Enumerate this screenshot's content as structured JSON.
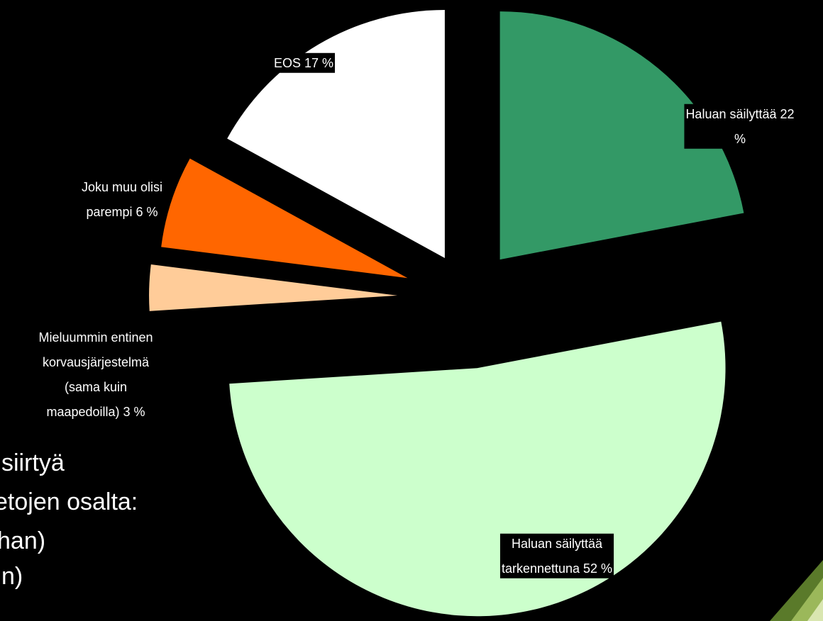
{
  "chart_data": {
    "type": "pie",
    "values": [
      22,
      52,
      3,
      6,
      17
    ],
    "value_labels": [
      [
        "Haluan säilyttää 22",
        "%"
      ],
      [
        "Haluan säilyttää",
        "tarkennettuna 52 %"
      ],
      [
        "Mieluummin entinen",
        "korvausjärjestelmä",
        "(sama kuin",
        "maapedoilla) 3 %"
      ],
      [
        "Joku muu olisi",
        "parempi 6 %"
      ],
      [
        "EOS 17 %"
      ]
    ],
    "colors": [
      "#339966",
      "#CCFFCC",
      "#FFCC99",
      "#FF6600",
      "#FFFFFF"
    ]
  },
  "background_text": [
    "siirtyä",
    "etojen osalta:",
    "han)",
    "n)"
  ]
}
